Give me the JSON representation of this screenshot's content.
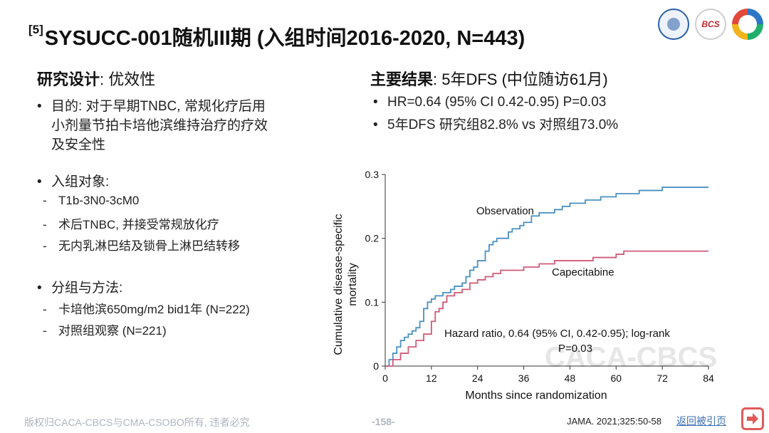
{
  "slide": {
    "title_ref": "[5]",
    "title": "SYSUCC-001随机III期 (入组时间2016-2020, N=443)"
  },
  "left": {
    "design_label": "研究设计",
    "design_value": ": 优效性",
    "purpose_lines": [
      "目的: 对于早期TNBC, 常规化疗后用",
      "小剂量节拍卡培他滨维持治疗的疗效",
      "及安全性"
    ],
    "enroll_label": "入组对象:",
    "enroll_items": [
      "T1b-3N0-3cM0",
      "术后TNBC, 并接受常规放化疗",
      "无内乳淋巴结及锁骨上淋巴结转移"
    ],
    "group_label": "分组与方法:",
    "group_items": [
      "卡培他滨650mg/m2 bid1年 (N=222)",
      "对照组观察 (N=221)"
    ]
  },
  "right": {
    "results_label": "主要结果",
    "results_value": ": 5年DFS (中位随访61月)",
    "result_items": [
      "HR=0.64 (95% CI 0.42-0.95) P=0.03",
      "5年DFS 研究组82.8% vs 对照组73.0%"
    ]
  },
  "chart_data": {
    "type": "line",
    "step": true,
    "xlabel": "Months since randomization",
    "ylabel": "Cumulative disease-specific mortality",
    "xlim": [
      0,
      84
    ],
    "ylim": [
      0,
      0.3
    ],
    "x_ticks": [
      0,
      12,
      24,
      36,
      48,
      60,
      72,
      84
    ],
    "y_ticks": [
      0,
      0.1,
      0.2,
      0.3
    ],
    "y_tick_labels": [
      "0",
      "0.1",
      "0.2",
      "0.3"
    ],
    "series": [
      {
        "name": "Observation",
        "color": "#4a90c2",
        "x": [
          0,
          1,
          2,
          3,
          4,
          5,
          6,
          7,
          8,
          9,
          10,
          11,
          12,
          13,
          14,
          15,
          16,
          17,
          18,
          20,
          21,
          22,
          23,
          24,
          26,
          27,
          28,
          29,
          30,
          32,
          33,
          35,
          36,
          38,
          40,
          42,
          44,
          46,
          48,
          52,
          56,
          60,
          66,
          72,
          84
        ],
        "y": [
          0,
          0.01,
          0.02,
          0.03,
          0.04,
          0.045,
          0.05,
          0.055,
          0.06,
          0.07,
          0.09,
          0.1,
          0.105,
          0.11,
          0.11,
          0.115,
          0.115,
          0.12,
          0.125,
          0.13,
          0.14,
          0.15,
          0.155,
          0.165,
          0.18,
          0.19,
          0.195,
          0.2,
          0.2,
          0.21,
          0.215,
          0.22,
          0.225,
          0.235,
          0.24,
          0.24,
          0.245,
          0.25,
          0.255,
          0.26,
          0.265,
          0.27,
          0.275,
          0.28,
          0.28
        ]
      },
      {
        "name": "Capecitabine",
        "color": "#d05a78",
        "x": [
          0,
          2,
          4,
          6,
          8,
          10,
          12,
          13,
          14,
          15,
          16,
          18,
          20,
          22,
          24,
          26,
          28,
          30,
          34,
          36,
          40,
          42,
          44,
          48,
          54,
          60,
          62,
          84
        ],
        "y": [
          0,
          0.01,
          0.02,
          0.03,
          0.04,
          0.05,
          0.07,
          0.085,
          0.09,
          0.1,
          0.11,
          0.115,
          0.12,
          0.13,
          0.135,
          0.14,
          0.145,
          0.15,
          0.15,
          0.155,
          0.16,
          0.16,
          0.165,
          0.165,
          0.17,
          0.175,
          0.18,
          0.18
        ]
      }
    ],
    "annotations": [
      "Observation",
      "Capecitabine",
      "Hazard ratio, 0.64 (95% CI, 0.42-0.95); log-rank",
      "P=0.03"
    ],
    "watermark": "CACA-CBCS"
  },
  "footer": {
    "copyright": "版权归CACA-CBCS与CMA-CSOBO所有, 违者必究",
    "page": "-158-",
    "reference": "JAMA. 2021;325:50-58",
    "back_label": "返回被引页"
  },
  "logos": {
    "bcs_text": "BCS"
  }
}
